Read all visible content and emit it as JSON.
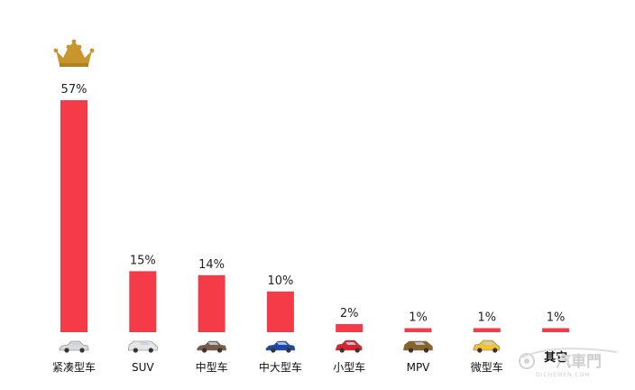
{
  "chart_data": {
    "type": "bar",
    "categories": [
      "紧凑型车",
      "SUV",
      "中型车",
      "中大型车",
      "小型车",
      "MPV",
      "微型车",
      "其它"
    ],
    "values": [
      57,
      15,
      14,
      10,
      2,
      1,
      1,
      1
    ],
    "value_labels": [
      "57%",
      "15%",
      "14%",
      "10%",
      "2%",
      "1%",
      "1%",
      "1%"
    ],
    "unit": "%",
    "ylim": [
      0,
      57
    ],
    "grid": false,
    "legend": "none",
    "bar_color": "#f43b47",
    "top_marker": "crown-icon"
  },
  "car_icons": [
    {
      "icon": "compact-sedan-icon",
      "color": "#d9d9d9"
    },
    {
      "icon": "suv-icon",
      "color": "#e6e6e6"
    },
    {
      "icon": "midsize-sedan-icon",
      "color": "#7a5a45"
    },
    {
      "icon": "large-sedan-icon",
      "color": "#1d47a8"
    },
    {
      "icon": "hatchback-icon",
      "color": "#d9232c"
    },
    {
      "icon": "mpv-icon",
      "color": "#8a6326"
    },
    {
      "icon": "mini-car-icon",
      "color": "#f2c230"
    },
    {
      "icon": "",
      "color": ""
    }
  ],
  "crown_color": "#c8962c",
  "watermark": {
    "logo": "汽車門",
    "sub": "QICHEMEN.COM"
  }
}
